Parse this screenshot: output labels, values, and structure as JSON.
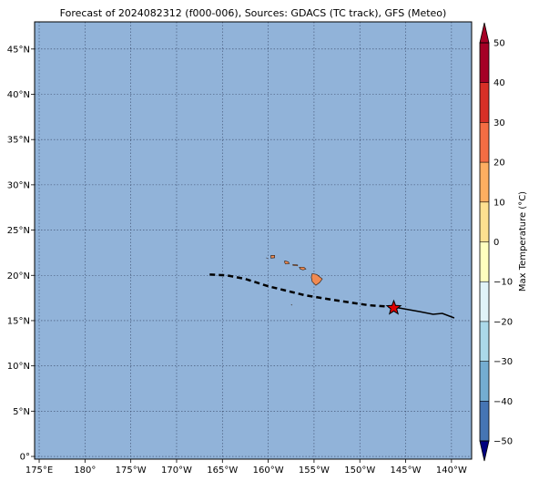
{
  "title": "Forecast of 2024082312 (f000-006), Sources: GDACS (TC track), GFS (Meteo)",
  "map": {
    "lon_min": 174.5,
    "lon_max": 222.2,
    "lat_min": -0.3,
    "lat_max": 48.0,
    "ocean_color": "#91b3d9",
    "gridlines": "dotted",
    "lon_ticks": [
      {
        "value": 175,
        "label": "175°E"
      },
      {
        "value": 180,
        "label": "180°"
      },
      {
        "value": 185,
        "label": "175°W"
      },
      {
        "value": 190,
        "label": "170°W"
      },
      {
        "value": 195,
        "label": "165°W"
      },
      {
        "value": 200,
        "label": "160°W"
      },
      {
        "value": 205,
        "label": "155°W"
      },
      {
        "value": 210,
        "label": "150°W"
      },
      {
        "value": 215,
        "label": "145°W"
      },
      {
        "value": 220,
        "label": "140°W"
      }
    ],
    "lat_ticks": [
      {
        "value": 0,
        "label": "0°"
      },
      {
        "value": 5,
        "label": "5°N"
      },
      {
        "value": 10,
        "label": "10°N"
      },
      {
        "value": 15,
        "label": "15°N"
      },
      {
        "value": 20,
        "label": "20°N"
      },
      {
        "value": 25,
        "label": "25°N"
      },
      {
        "value": 30,
        "label": "30°N"
      },
      {
        "value": 35,
        "label": "35°N"
      },
      {
        "value": 40,
        "label": "40°N"
      },
      {
        "value": 45,
        "label": "45°N"
      }
    ],
    "track_past": [
      [
        213.7,
        16.5
      ],
      [
        216.5,
        16.0
      ],
      [
        218.0,
        15.7
      ],
      [
        219.0,
        15.8
      ],
      [
        220.3,
        15.3
      ]
    ],
    "track_forecast": [
      [
        213.7,
        16.5
      ],
      [
        211.0,
        16.7
      ],
      [
        207.0,
        17.3
      ],
      [
        204.0,
        17.8
      ],
      [
        200.0,
        18.8
      ],
      [
        197.5,
        19.6
      ],
      [
        195.5,
        20.0
      ],
      [
        193.5,
        20.1
      ]
    ],
    "storm_position": [
      213.7,
      16.4
    ],
    "islands": [
      {
        "name": "Hawaii",
        "points": [
          [
            204.8,
            20.2
          ],
          [
            205.3,
            20.1
          ],
          [
            205.9,
            19.6
          ],
          [
            205.6,
            19.2
          ],
          [
            205.2,
            18.9
          ],
          [
            204.8,
            19.3
          ],
          [
            204.7,
            19.8
          ]
        ]
      },
      {
        "name": "Maui",
        "points": [
          [
            203.4,
            20.9
          ],
          [
            203.9,
            20.9
          ],
          [
            204.1,
            20.7
          ],
          [
            203.8,
            20.6
          ],
          [
            203.5,
            20.7
          ]
        ]
      },
      {
        "name": "Molokai",
        "points": [
          [
            202.7,
            21.2
          ],
          [
            203.2,
            21.15
          ],
          [
            203.2,
            21.05
          ],
          [
            202.7,
            21.1
          ]
        ]
      },
      {
        "name": "Oahu",
        "points": [
          [
            201.8,
            21.6
          ],
          [
            202.2,
            21.5
          ],
          [
            202.3,
            21.3
          ],
          [
            201.9,
            21.25
          ],
          [
            201.8,
            21.4
          ]
        ]
      },
      {
        "name": "Kauai",
        "points": [
          [
            200.3,
            22.2
          ],
          [
            200.7,
            22.2
          ],
          [
            200.7,
            21.95
          ],
          [
            200.3,
            21.9
          ]
        ]
      },
      {
        "name": "Niihau",
        "points": [
          [
            199.8,
            21.95
          ],
          [
            199.9,
            21.85
          ]
        ]
      },
      {
        "name": "Johnston Atoll",
        "points": [
          [
            202.5,
            16.8
          ],
          [
            202.6,
            16.7
          ]
        ]
      }
    ]
  },
  "colorbar": {
    "label": "Max Temperature (°C)",
    "ticks": [
      "50",
      "40",
      "30",
      "20",
      "10",
      "0",
      "−10",
      "−20",
      "−30",
      "−40",
      "−50"
    ],
    "colors": [
      "#a50026",
      "#d73027",
      "#f46d43",
      "#fdae61",
      "#fee090",
      "#ffffbf",
      "#e0f3f8",
      "#abd9e9",
      "#74add1",
      "#4575b4",
      "#313695"
    ],
    "top_extend_color": "#a50026",
    "bottom_extend_color": "#00007f"
  }
}
